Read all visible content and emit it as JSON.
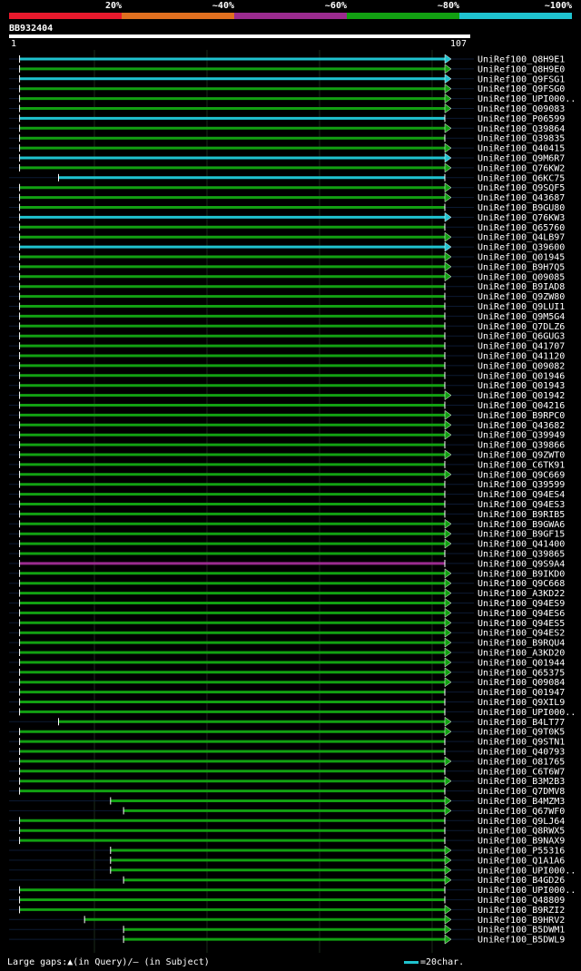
{
  "scale": {
    "segments": [
      {
        "label": "20%",
        "color": "#e8192c"
      },
      {
        "label": "~40%",
        "color": "#e06f1f"
      },
      {
        "label": "~60%",
        "color": "#9b2b8f"
      },
      {
        "label": "~80%",
        "color": "#12a012"
      },
      {
        "label": "~100%",
        "color": "#1fc3cf"
      }
    ]
  },
  "query": {
    "id": "BB932404",
    "start": "1",
    "end": "107"
  },
  "legend": {
    "gaps_text": "Large gaps:▲(in Query)/– (in Subject)",
    "scale_text": "=20char."
  },
  "chart_data": {
    "type": "alignment",
    "title": "BB932404",
    "query_range": [
      1,
      107
    ],
    "hits": [
      {
        "name": "UniRef100_Q8H9E1",
        "color": "cyan",
        "end": "arrow",
        "start": 3
      },
      {
        "name": "UniRef100_Q8H9E0",
        "color": "green",
        "end": "arrow",
        "start": 3
      },
      {
        "name": "UniRef100_Q9FSG1",
        "color": "cyan",
        "end": "arrow",
        "start": 3
      },
      {
        "name": "UniRef100_Q9FSG0",
        "color": "green",
        "end": "arrow",
        "start": 3
      },
      {
        "name": "UniRef100_UPI000..",
        "color": "green",
        "end": "arrow",
        "start": 3
      },
      {
        "name": "UniRef100_Q09083",
        "color": "green",
        "end": "arrow",
        "start": 3
      },
      {
        "name": "UniRef100_P06599",
        "color": "cyan",
        "end": "plain",
        "start": 3
      },
      {
        "name": "UniRef100_Q39864",
        "color": "green",
        "end": "arrow",
        "start": 3
      },
      {
        "name": "UniRef100_Q39835",
        "color": "green",
        "end": "plain",
        "start": 3
      },
      {
        "name": "UniRef100_Q40415",
        "color": "green",
        "end": "arrow",
        "start": 3
      },
      {
        "name": "UniRef100_Q9M6R7",
        "color": "cyan",
        "end": "arrow",
        "start": 3
      },
      {
        "name": "UniRef100_Q76KW2",
        "color": "green",
        "end": "arrow",
        "start": 3
      },
      {
        "name": "UniRef100_Q6KC75",
        "color": "cyan",
        "end": "plain",
        "start": 12
      },
      {
        "name": "UniRef100_Q9SQF5",
        "color": "green",
        "end": "arrow",
        "start": 3
      },
      {
        "name": "UniRef100_Q43687",
        "color": "green",
        "end": "arrow",
        "start": 3
      },
      {
        "name": "UniRef100_B9GU80",
        "color": "green",
        "end": "plain",
        "start": 3
      },
      {
        "name": "UniRef100_Q76KW3",
        "color": "cyan",
        "end": "arrow",
        "start": 3
      },
      {
        "name": "UniRef100_Q65760",
        "color": "green",
        "end": "plain",
        "start": 3
      },
      {
        "name": "UniRef100_Q4LB97",
        "color": "green",
        "end": "arrow",
        "start": 3
      },
      {
        "name": "UniRef100_Q39600",
        "color": "cyan",
        "end": "arrow",
        "start": 3
      },
      {
        "name": "UniRef100_Q01945",
        "color": "green",
        "end": "arrow",
        "start": 3
      },
      {
        "name": "UniRef100_B9H7Q5",
        "color": "green",
        "end": "arrow",
        "start": 3
      },
      {
        "name": "UniRef100_Q09085",
        "color": "green",
        "end": "arrow",
        "start": 3
      },
      {
        "name": "UniRef100_B9IAD8",
        "color": "green",
        "end": "plain",
        "start": 3
      },
      {
        "name": "UniRef100_Q9ZW80",
        "color": "green",
        "end": "plain",
        "start": 3
      },
      {
        "name": "UniRef100_Q9LUI1",
        "color": "green",
        "end": "plain",
        "start": 3
      },
      {
        "name": "UniRef100_Q9M5G4",
        "color": "green",
        "end": "plain",
        "start": 3
      },
      {
        "name": "UniRef100_Q7DLZ6",
        "color": "green",
        "end": "plain",
        "start": 3
      },
      {
        "name": "UniRef100_Q6GUG3",
        "color": "green",
        "end": "plain",
        "start": 3
      },
      {
        "name": "UniRef100_Q41707",
        "color": "green",
        "end": "plain",
        "start": 3
      },
      {
        "name": "UniRef100_Q41120",
        "color": "green",
        "end": "plain",
        "start": 3
      },
      {
        "name": "UniRef100_Q09082",
        "color": "green",
        "end": "plain",
        "start": 3
      },
      {
        "name": "UniRef100_Q01946",
        "color": "green",
        "end": "plain",
        "start": 3
      },
      {
        "name": "UniRef100_Q01943",
        "color": "green",
        "end": "plain",
        "start": 3
      },
      {
        "name": "UniRef100_Q01942",
        "color": "green",
        "end": "arrow",
        "start": 3
      },
      {
        "name": "UniRef100_Q04216",
        "color": "green",
        "end": "plain",
        "start": 3
      },
      {
        "name": "UniRef100_B9RPC0",
        "color": "green",
        "end": "arrow",
        "start": 3
      },
      {
        "name": "UniRef100_Q43682",
        "color": "green",
        "end": "arrow",
        "start": 3
      },
      {
        "name": "UniRef100_Q39949",
        "color": "green",
        "end": "arrow",
        "start": 3
      },
      {
        "name": "UniRef100_Q39866",
        "color": "green",
        "end": "plain",
        "start": 3
      },
      {
        "name": "UniRef100_Q9ZWT0",
        "color": "green",
        "end": "arrow",
        "start": 3
      },
      {
        "name": "UniRef100_C6TK91",
        "color": "green",
        "end": "plain",
        "start": 3
      },
      {
        "name": "UniRef100_Q9C669",
        "color": "green",
        "end": "arrow",
        "start": 3
      },
      {
        "name": "UniRef100_Q39599",
        "color": "green",
        "end": "plain",
        "start": 3
      },
      {
        "name": "UniRef100_Q94ES4",
        "color": "green",
        "end": "plain",
        "start": 3
      },
      {
        "name": "UniRef100_Q94ES3",
        "color": "green",
        "end": "plain",
        "start": 3
      },
      {
        "name": "UniRef100_B9RIB5",
        "color": "green",
        "end": "plain",
        "start": 3
      },
      {
        "name": "UniRef100_B9GWA6",
        "color": "green",
        "end": "arrow",
        "start": 3
      },
      {
        "name": "UniRef100_B9GF15",
        "color": "green",
        "end": "arrow",
        "start": 3
      },
      {
        "name": "UniRef100_Q41400",
        "color": "green",
        "end": "arrow",
        "start": 3
      },
      {
        "name": "UniRef100_Q39865",
        "color": "green",
        "end": "plain",
        "start": 3
      },
      {
        "name": "UniRef100_Q9S9A4",
        "color": "purple",
        "end": "plain",
        "start": 3
      },
      {
        "name": "UniRef100_B9IKD0",
        "color": "green",
        "end": "arrow",
        "start": 3
      },
      {
        "name": "UniRef100_Q9C668",
        "color": "green",
        "end": "arrow",
        "start": 3
      },
      {
        "name": "UniRef100_A3KD22",
        "color": "green",
        "end": "arrow",
        "start": 3
      },
      {
        "name": "UniRef100_Q94ES9",
        "color": "green",
        "end": "arrow",
        "start": 3
      },
      {
        "name": "UniRef100_Q94ES6",
        "color": "green",
        "end": "arrow",
        "start": 3
      },
      {
        "name": "UniRef100_Q94ES5",
        "color": "green",
        "end": "arrow",
        "start": 3
      },
      {
        "name": "UniRef100_Q94ES2",
        "color": "green",
        "end": "arrow",
        "start": 3
      },
      {
        "name": "UniRef100_B9RQU4",
        "color": "green",
        "end": "arrow",
        "start": 3
      },
      {
        "name": "UniRef100_A3KD20",
        "color": "green",
        "end": "arrow",
        "start": 3
      },
      {
        "name": "UniRef100_Q01944",
        "color": "green",
        "end": "arrow",
        "start": 3
      },
      {
        "name": "UniRef100_Q65375",
        "color": "green",
        "end": "arrow",
        "start": 3
      },
      {
        "name": "UniRef100_Q09084",
        "color": "green",
        "end": "arrow",
        "start": 3
      },
      {
        "name": "UniRef100_Q01947",
        "color": "green",
        "end": "plain",
        "start": 3
      },
      {
        "name": "UniRef100_Q9XIL9",
        "color": "green",
        "end": "plain",
        "start": 3
      },
      {
        "name": "UniRef100_UPI000..",
        "color": "green",
        "end": "plain",
        "start": 3
      },
      {
        "name": "UniRef100_B4LT77",
        "color": "green",
        "end": "arrow",
        "start": 12
      },
      {
        "name": "UniRef100_Q9T0K5",
        "color": "green",
        "end": "arrow",
        "start": 3
      },
      {
        "name": "UniRef100_Q9STN1",
        "color": "green",
        "end": "plain",
        "start": 3
      },
      {
        "name": "UniRef100_Q40793",
        "color": "green",
        "end": "plain",
        "start": 3
      },
      {
        "name": "UniRef100_O81765",
        "color": "green",
        "end": "arrow",
        "start": 3
      },
      {
        "name": "UniRef100_C6T6W7",
        "color": "green",
        "end": "plain",
        "start": 3
      },
      {
        "name": "UniRef100_B3M2B3",
        "color": "green",
        "end": "arrow",
        "start": 3
      },
      {
        "name": "UniRef100_Q7DMV8",
        "color": "green",
        "end": "plain",
        "start": 3
      },
      {
        "name": "UniRef100_B4MZM3",
        "color": "green",
        "end": "arrow",
        "start": 24
      },
      {
        "name": "UniRef100_Q67WF0",
        "color": "green",
        "end": "arrow",
        "start": 27
      },
      {
        "name": "UniRef100_Q9LJ64",
        "color": "green",
        "end": "plain",
        "start": 3
      },
      {
        "name": "UniRef100_Q8RWX5",
        "color": "green",
        "end": "plain",
        "start": 3
      },
      {
        "name": "UniRef100_B9NAX9",
        "color": "green",
        "end": "plain",
        "start": 3
      },
      {
        "name": "UniRef100_P55316",
        "color": "green",
        "end": "arrow",
        "start": 24
      },
      {
        "name": "UniRef100_Q1A1A6",
        "color": "green",
        "end": "arrow",
        "start": 24
      },
      {
        "name": "UniRef100_UPI000..",
        "color": "green",
        "end": "arrow",
        "start": 24
      },
      {
        "name": "UniRef100_B4GD26",
        "color": "green",
        "end": "arrow",
        "start": 27
      },
      {
        "name": "UniRef100_UPI000..",
        "color": "green",
        "end": "plain",
        "start": 3
      },
      {
        "name": "UniRef100_Q48809",
        "color": "green",
        "end": "plain",
        "start": 3
      },
      {
        "name": "UniRef100_B9RZI2",
        "color": "green",
        "end": "arrow",
        "start": 3
      },
      {
        "name": "UniRef100_B9HRV2",
        "color": "green",
        "end": "arrow",
        "start": 18
      },
      {
        "name": "UniRef100_B5DWM1",
        "color": "green",
        "end": "arrow",
        "start": 27
      },
      {
        "name": "UniRef100_B5DWL9",
        "color": "green",
        "end": "arrow",
        "start": 27
      }
    ]
  }
}
